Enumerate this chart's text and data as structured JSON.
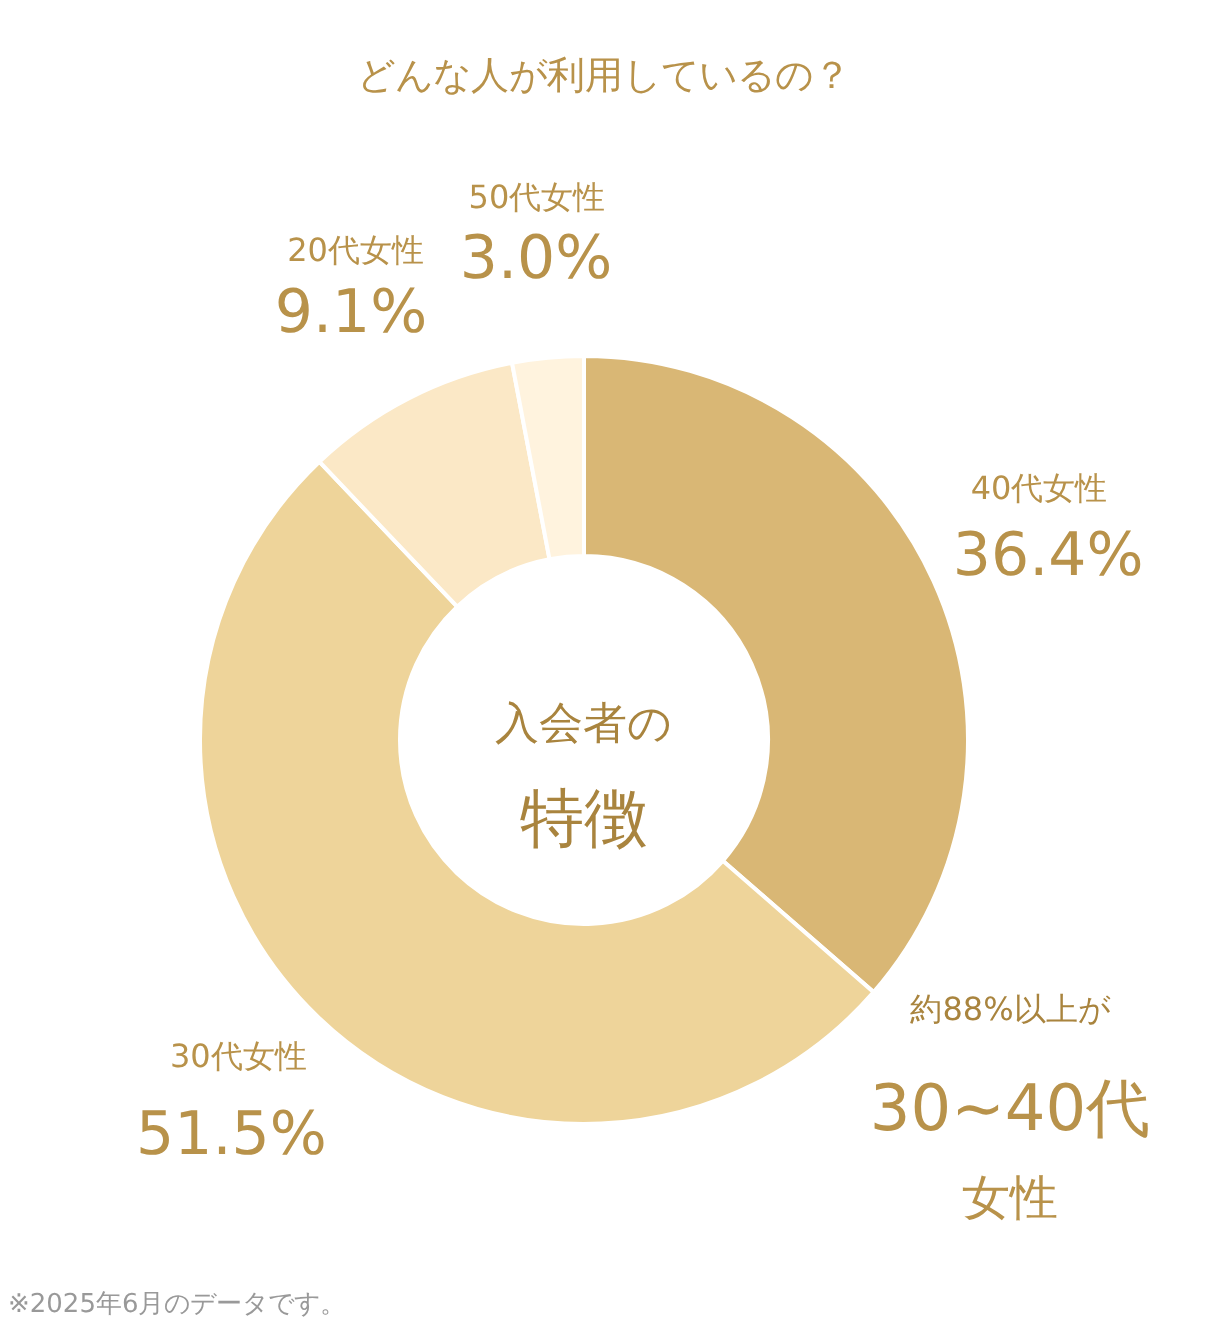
{
  "chart_data": {
    "type": "donut",
    "title": "どんな人が利用しているの？",
    "categories": [
      "40代女性",
      "30代女性",
      "20代女性",
      "50代女性"
    ],
    "values": [
      36.4,
      51.5,
      9.1,
      3.0
    ],
    "value_labels": [
      "36.4%",
      "51.5%",
      "9.1%",
      "3.0%"
    ],
    "colors": [
      "#d9b775",
      "#eed49a",
      "#fbe8c6",
      "#fff3de"
    ],
    "annotations": [
      "入会者の",
      "特徴",
      "約88%以上が",
      "30~40代",
      "女性",
      "※2025年6月のデータです。"
    ]
  }
}
